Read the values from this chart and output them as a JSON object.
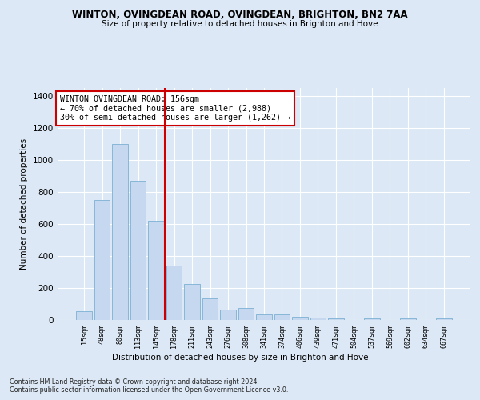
{
  "title": "WINTON, OVINGDEAN ROAD, OVINGDEAN, BRIGHTON, BN2 7AA",
  "subtitle": "Size of property relative to detached houses in Brighton and Hove",
  "xlabel": "Distribution of detached houses by size in Brighton and Hove",
  "ylabel": "Number of detached properties",
  "footnote1": "Contains HM Land Registry data © Crown copyright and database right 2024.",
  "footnote2": "Contains public sector information licensed under the Open Government Licence v3.0.",
  "annotation_title": "WINTON OVINGDEAN ROAD: 156sqm",
  "annotation_line1": "← 70% of detached houses are smaller (2,988)",
  "annotation_line2": "30% of semi-detached houses are larger (1,262) →",
  "bar_labels": [
    "15sqm",
    "48sqm",
    "80sqm",
    "113sqm",
    "145sqm",
    "178sqm",
    "211sqm",
    "243sqm",
    "276sqm",
    "308sqm",
    "341sqm",
    "374sqm",
    "406sqm",
    "439sqm",
    "471sqm",
    "504sqm",
    "537sqm",
    "569sqm",
    "602sqm",
    "634sqm",
    "667sqm"
  ],
  "bar_values": [
    55,
    750,
    1100,
    870,
    620,
    340,
    225,
    135,
    65,
    75,
    35,
    35,
    22,
    15,
    10,
    0,
    12,
    0,
    10,
    0,
    10
  ],
  "bar_color": "#c5d8f0",
  "bar_edge_color": "#7ab0d4",
  "vline_color": "#cc0000",
  "vline_x_pos": 4.5,
  "ylim": [
    0,
    1450
  ],
  "yticks": [
    0,
    200,
    400,
    600,
    800,
    1000,
    1200,
    1400
  ],
  "background_color": "#dce8f5",
  "plot_bg_color": "#dce8f5",
  "grid_color": "#ffffff",
  "annotation_box_edge": "#cc0000",
  "annotation_box_face": "#ffffff"
}
